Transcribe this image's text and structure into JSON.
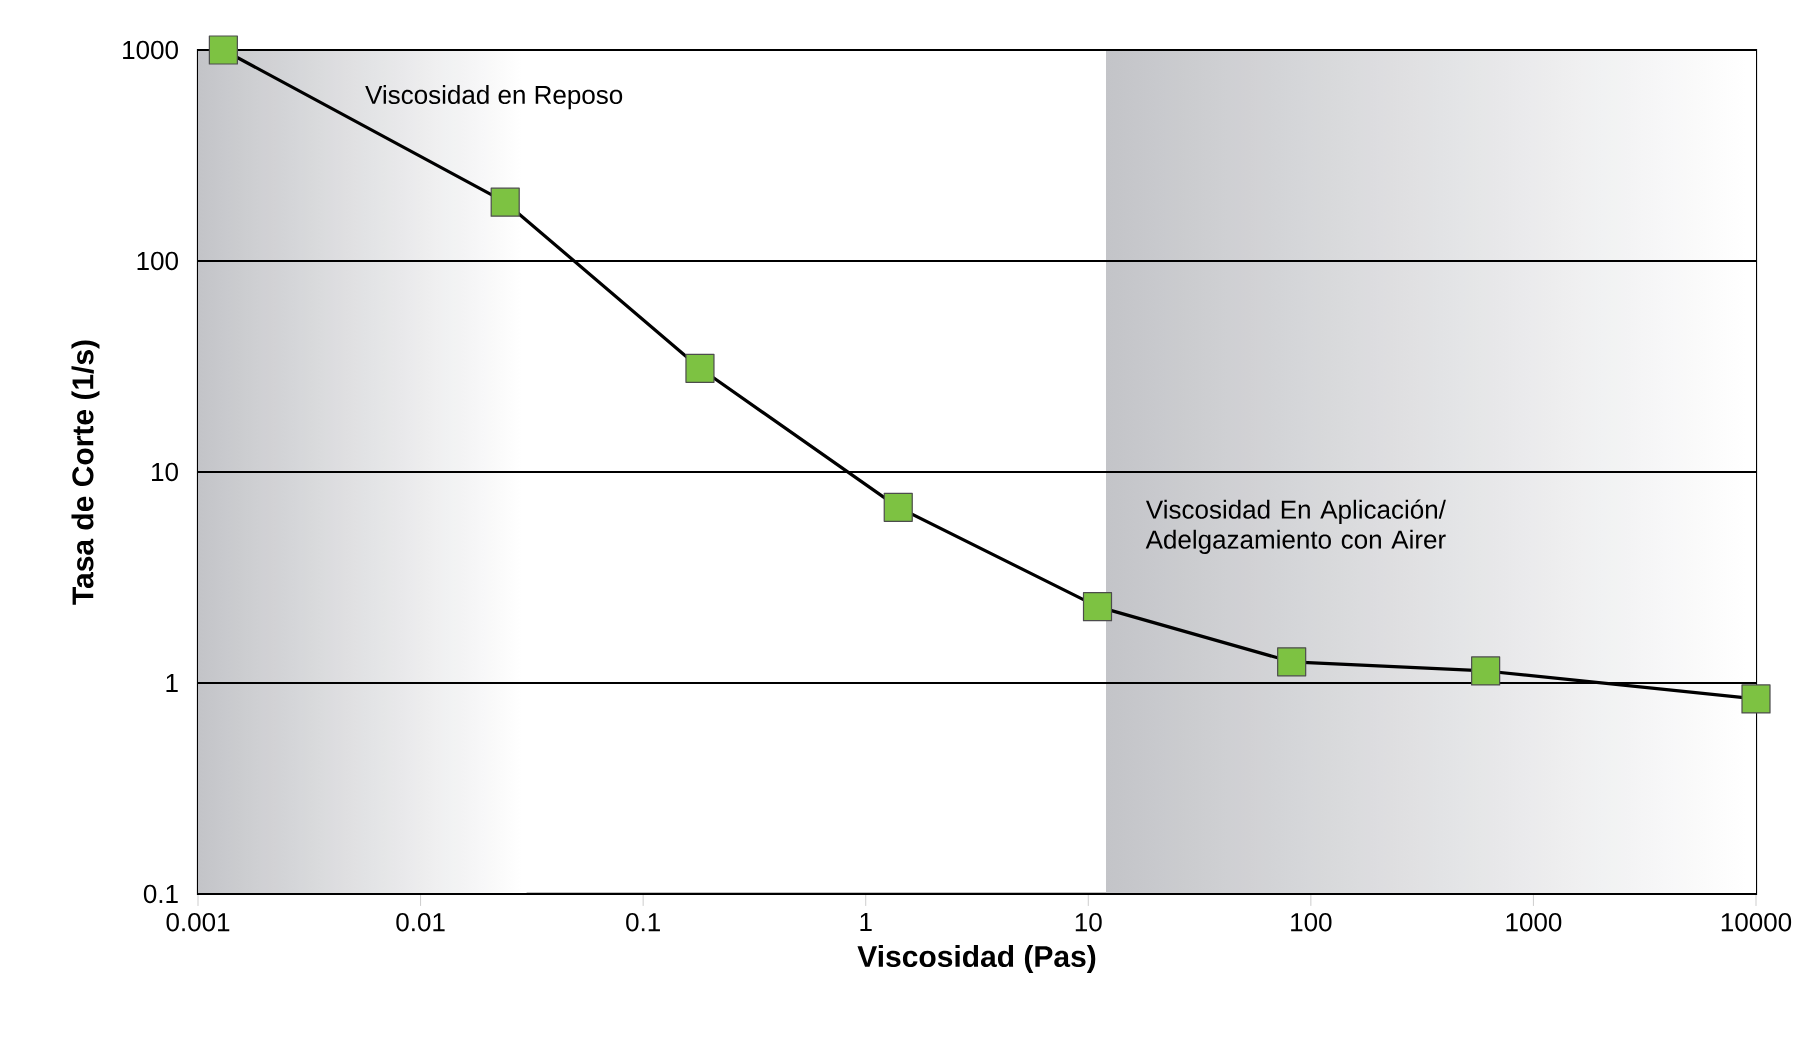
{
  "chart_data": {
    "type": "line",
    "xlabel": "Viscosidad (Pas)",
    "ylabel": "Tasa de Corte (1/s)",
    "x": [
      0.0013,
      0.024,
      0.18,
      1.4,
      11,
      82,
      610,
      10000
    ],
    "series": [
      {
        "color": "#7dc242",
        "values": [
          1000,
          190,
          31,
          6.8,
          2.3,
          1.26,
          1.14,
          0.84
        ]
      }
    ],
    "log": "xy",
    "xlim": [
      0.001,
      10000
    ],
    "ylim": [
      0.1,
      1000
    ],
    "xticks": [
      0.001,
      0.01,
      0.1,
      1,
      10,
      100,
      1000,
      10000
    ],
    "yticks": [
      0.1,
      1,
      10,
      100,
      1000
    ],
    "grid": "y",
    "marker": "square",
    "line_style": "solid",
    "bands": [
      {
        "axis": "x",
        "from": 0.001,
        "to": 0.03,
        "label": "Viscosidad en Reposo",
        "color": "#c3c4c8"
      },
      {
        "axis": "x",
        "from": 12,
        "to": 10000,
        "label": "Viscosidad En Aplicación/ Adelgazamiento con Airer",
        "color": "#c3c4c8"
      }
    ]
  }
}
